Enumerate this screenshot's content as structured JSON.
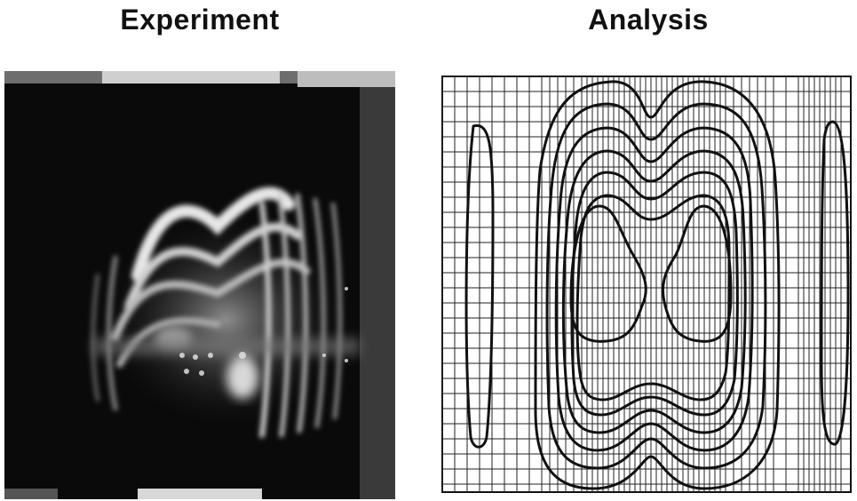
{
  "titles": {
    "experiment": "Experiment",
    "analysis": "Analysis"
  },
  "colors": {
    "ink": "#111111",
    "background": "#ffffff"
  }
}
